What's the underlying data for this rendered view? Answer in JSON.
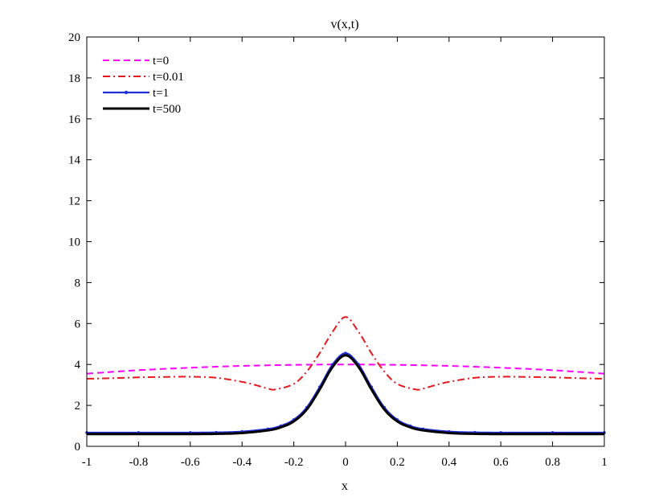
{
  "chart_data": {
    "type": "line",
    "title": "v(x,t)",
    "xlabel": "x",
    "ylabel": "",
    "xlim": [
      -1,
      1
    ],
    "ylim": [
      0,
      20
    ],
    "xticks": [
      -1,
      -0.8,
      -0.6,
      -0.4,
      -0.2,
      0,
      0.2,
      0.4,
      0.6,
      0.8,
      1
    ],
    "xtick_labels": [
      "-1",
      "-0.8",
      "-0.6",
      "-0.4",
      "-0.2",
      "0",
      "0.2",
      "0.4",
      "0.6",
      "0.8",
      "1"
    ],
    "yticks": [
      0,
      2,
      4,
      6,
      8,
      10,
      12,
      14,
      16,
      18,
      20
    ],
    "ytick_labels": [
      "0",
      "2",
      "4",
      "6",
      "8",
      "10",
      "12",
      "14",
      "16",
      "18",
      "20"
    ],
    "grid": false,
    "legend_position": "top-left",
    "series": [
      {
        "name": "t=0",
        "color": "#ff00ff",
        "style": "dashed",
        "x": [
          -1,
          -0.8,
          -0.6,
          -0.4,
          -0.2,
          0,
          0.2,
          0.4,
          0.6,
          0.8,
          1
        ],
        "y": [
          3.55,
          3.72,
          3.84,
          3.93,
          3.98,
          4.0,
          3.98,
          3.93,
          3.84,
          3.72,
          3.55
        ]
      },
      {
        "name": "t=0.01",
        "color": "#e41a1c",
        "style": "dashdot",
        "x": [
          -1,
          -0.9,
          -0.8,
          -0.7,
          -0.6,
          -0.5,
          -0.4,
          -0.35,
          -0.3,
          -0.27,
          -0.2,
          -0.15,
          -0.1,
          -0.05,
          0,
          0.05,
          0.1,
          0.15,
          0.2,
          0.27,
          0.3,
          0.35,
          0.4,
          0.5,
          0.6,
          0.7,
          0.8,
          0.9,
          1
        ],
        "y": [
          3.3,
          3.33,
          3.37,
          3.39,
          3.4,
          3.35,
          3.15,
          3.0,
          2.82,
          2.78,
          3.05,
          3.65,
          4.55,
          5.6,
          6.32,
          5.6,
          4.55,
          3.65,
          3.05,
          2.78,
          2.82,
          3.0,
          3.15,
          3.35,
          3.4,
          3.39,
          3.37,
          3.33,
          3.3
        ]
      },
      {
        "name": "t=1",
        "color": "#1f2fd6",
        "style": "solid-dot",
        "x": [
          -1,
          -0.8,
          -0.6,
          -0.5,
          -0.4,
          -0.3,
          -0.25,
          -0.2,
          -0.15,
          -0.1,
          -0.05,
          0,
          0.05,
          0.1,
          0.15,
          0.2,
          0.25,
          0.3,
          0.4,
          0.5,
          0.6,
          0.8,
          1
        ],
        "y": [
          0.67,
          0.67,
          0.67,
          0.68,
          0.72,
          0.85,
          1.0,
          1.3,
          1.9,
          2.9,
          4.0,
          4.55,
          4.0,
          2.9,
          1.9,
          1.3,
          1.0,
          0.85,
          0.72,
          0.68,
          0.67,
          0.67,
          0.67
        ]
      },
      {
        "name": "t=500",
        "color": "#000000",
        "style": "solid-thick",
        "x": [
          -1,
          -0.8,
          -0.6,
          -0.5,
          -0.4,
          -0.3,
          -0.25,
          -0.2,
          -0.15,
          -0.1,
          -0.05,
          0,
          0.05,
          0.1,
          0.15,
          0.2,
          0.25,
          0.3,
          0.4,
          0.5,
          0.6,
          0.8,
          1
        ],
        "y": [
          0.6,
          0.6,
          0.6,
          0.61,
          0.65,
          0.78,
          0.93,
          1.22,
          1.8,
          2.78,
          3.88,
          4.45,
          3.88,
          2.78,
          1.8,
          1.22,
          0.93,
          0.78,
          0.65,
          0.61,
          0.6,
          0.6,
          0.6
        ]
      }
    ]
  }
}
